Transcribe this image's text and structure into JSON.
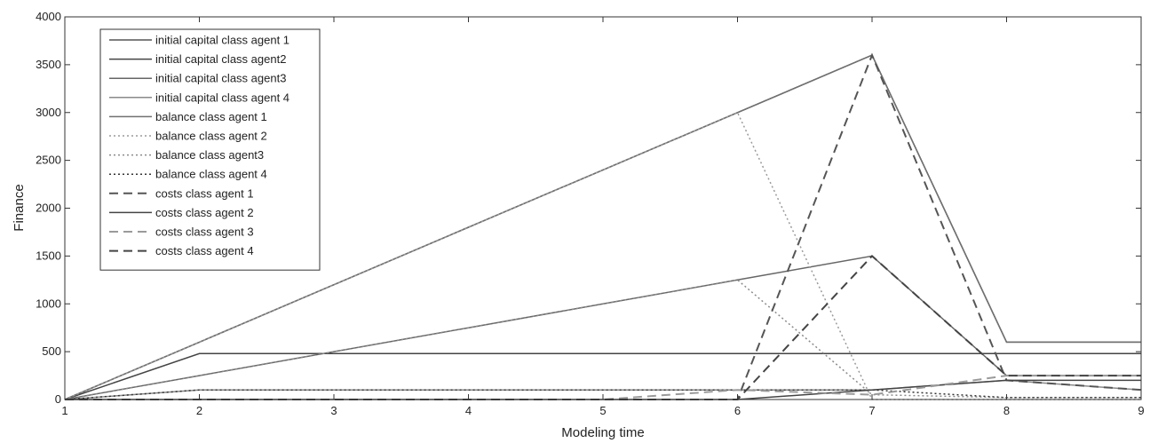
{
  "chart_data": {
    "type": "line",
    "title": "",
    "xlabel": "Modeling time",
    "ylabel": "Finance",
    "xlim": [
      1,
      9
    ],
    "ylim": [
      0,
      4000
    ],
    "xticks": [
      1,
      2,
      3,
      4,
      5,
      6,
      7,
      8,
      9
    ],
    "yticks": [
      0,
      500,
      1000,
      1500,
      2000,
      2500,
      3000,
      3500,
      4000
    ],
    "grid": false,
    "legend_position": "top-left",
    "series": [
      {
        "name": "initial capital class agent 1",
        "style": "solid",
        "color": "#555555",
        "x": [
          1,
          2,
          3,
          4,
          5,
          6,
          7,
          8,
          9
        ],
        "y": [
          0,
          600,
          1200,
          1800,
          2400,
          3000,
          3600,
          600,
          600
        ]
      },
      {
        "name": "initial capital class agent2",
        "style": "solid",
        "color": "#444444",
        "x": [
          1,
          2,
          3,
          4,
          5,
          6,
          7,
          8,
          9
        ],
        "y": [
          0,
          480,
          480,
          480,
          480,
          480,
          480,
          480,
          480
        ]
      },
      {
        "name": "initial capital class agent3",
        "style": "solid",
        "color": "#666666",
        "x": [
          1,
          2,
          3,
          4,
          5,
          6,
          7,
          8,
          9
        ],
        "y": [
          0,
          250,
          500,
          750,
          1000,
          1250,
          1500,
          250,
          250
        ]
      },
      {
        "name": "initial capital class agent 4",
        "style": "solid",
        "color": "#8a8a8a",
        "x": [
          1,
          2,
          3,
          4,
          5,
          6,
          7,
          8,
          9
        ],
        "y": [
          0,
          100,
          100,
          100,
          100,
          100,
          100,
          200,
          100
        ]
      },
      {
        "name": "balance class agent 1",
        "style": "solid",
        "color": "#707070",
        "x": [
          1,
          2,
          3,
          4,
          5,
          6,
          7,
          8,
          9
        ],
        "y": [
          0,
          600,
          1200,
          1800,
          2400,
          3000,
          3600,
          600,
          600
        ]
      },
      {
        "name": "balance class agent 2",
        "style": "dotted",
        "color": "#9a9a9a",
        "x": [
          1,
          2,
          3,
          4,
          5,
          6,
          7,
          8,
          9
        ],
        "y": [
          0,
          600,
          1200,
          1800,
          2400,
          3000,
          0,
          0,
          0
        ]
      },
      {
        "name": "balance class agent3",
        "style": "dotted",
        "color": "#8a8a8a",
        "x": [
          1,
          2,
          3,
          4,
          5,
          6,
          7,
          8,
          9
        ],
        "y": [
          0,
          250,
          500,
          750,
          1000,
          1250,
          50,
          20,
          20
        ]
      },
      {
        "name": "balance class agent 4",
        "style": "dotted",
        "color": "#333333",
        "x": [
          1,
          2,
          3,
          4,
          5,
          6,
          7,
          8,
          9
        ],
        "y": [
          0,
          100,
          100,
          100,
          100,
          100,
          100,
          20,
          20
        ]
      },
      {
        "name": "costs class agent 1",
        "style": "dashed",
        "color": "#555555",
        "x": [
          1,
          2,
          3,
          4,
          5,
          6,
          7,
          8,
          9
        ],
        "y": [
          0,
          0,
          0,
          0,
          0,
          0,
          3600,
          200,
          100
        ]
      },
      {
        "name": "costs class agent 2",
        "style": "solid",
        "color": "#444444",
        "x": [
          1,
          2,
          3,
          4,
          5,
          6,
          7,
          8,
          9
        ],
        "y": [
          0,
          0,
          0,
          0,
          0,
          0,
          100,
          200,
          200
        ]
      },
      {
        "name": "costs class agent 3",
        "style": "dashed",
        "color": "#9a9a9a",
        "x": [
          1,
          2,
          3,
          4,
          5,
          6,
          7,
          8,
          9
        ],
        "y": [
          0,
          0,
          0,
          0,
          0,
          100,
          50,
          250,
          250
        ]
      },
      {
        "name": "costs class agent 4",
        "style": "dashed",
        "color": "#444444",
        "x": [
          1,
          2,
          3,
          4,
          5,
          6,
          7,
          8,
          9
        ],
        "y": [
          0,
          0,
          0,
          0,
          0,
          0,
          1500,
          250,
          250
        ]
      }
    ]
  }
}
